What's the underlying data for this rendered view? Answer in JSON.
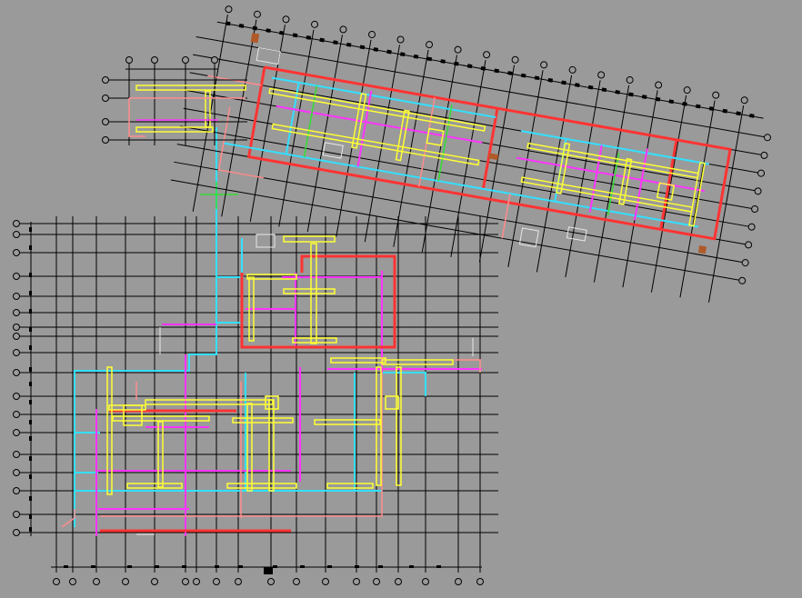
{
  "drawing": {
    "background": "#9a9a9a",
    "colors": {
      "grid": "#000000",
      "structure_white": "#e8e8e8",
      "duct_supply": "#ffff33",
      "duct_return": "#ff3333",
      "pipe_cyan": "#33e0ff",
      "pipe_magenta": "#ff33ff",
      "pipe_pink": "#ff8c8c",
      "pipe_green": "#33dd33",
      "fitting_brown": "#b05a2a"
    },
    "layers": [
      "axis-grid",
      "building-outline",
      "supply-duct",
      "return-duct",
      "cyan-pipe",
      "magenta-pipe",
      "pink-pipe",
      "green-pipe",
      "equipment-fittings"
    ]
  }
}
